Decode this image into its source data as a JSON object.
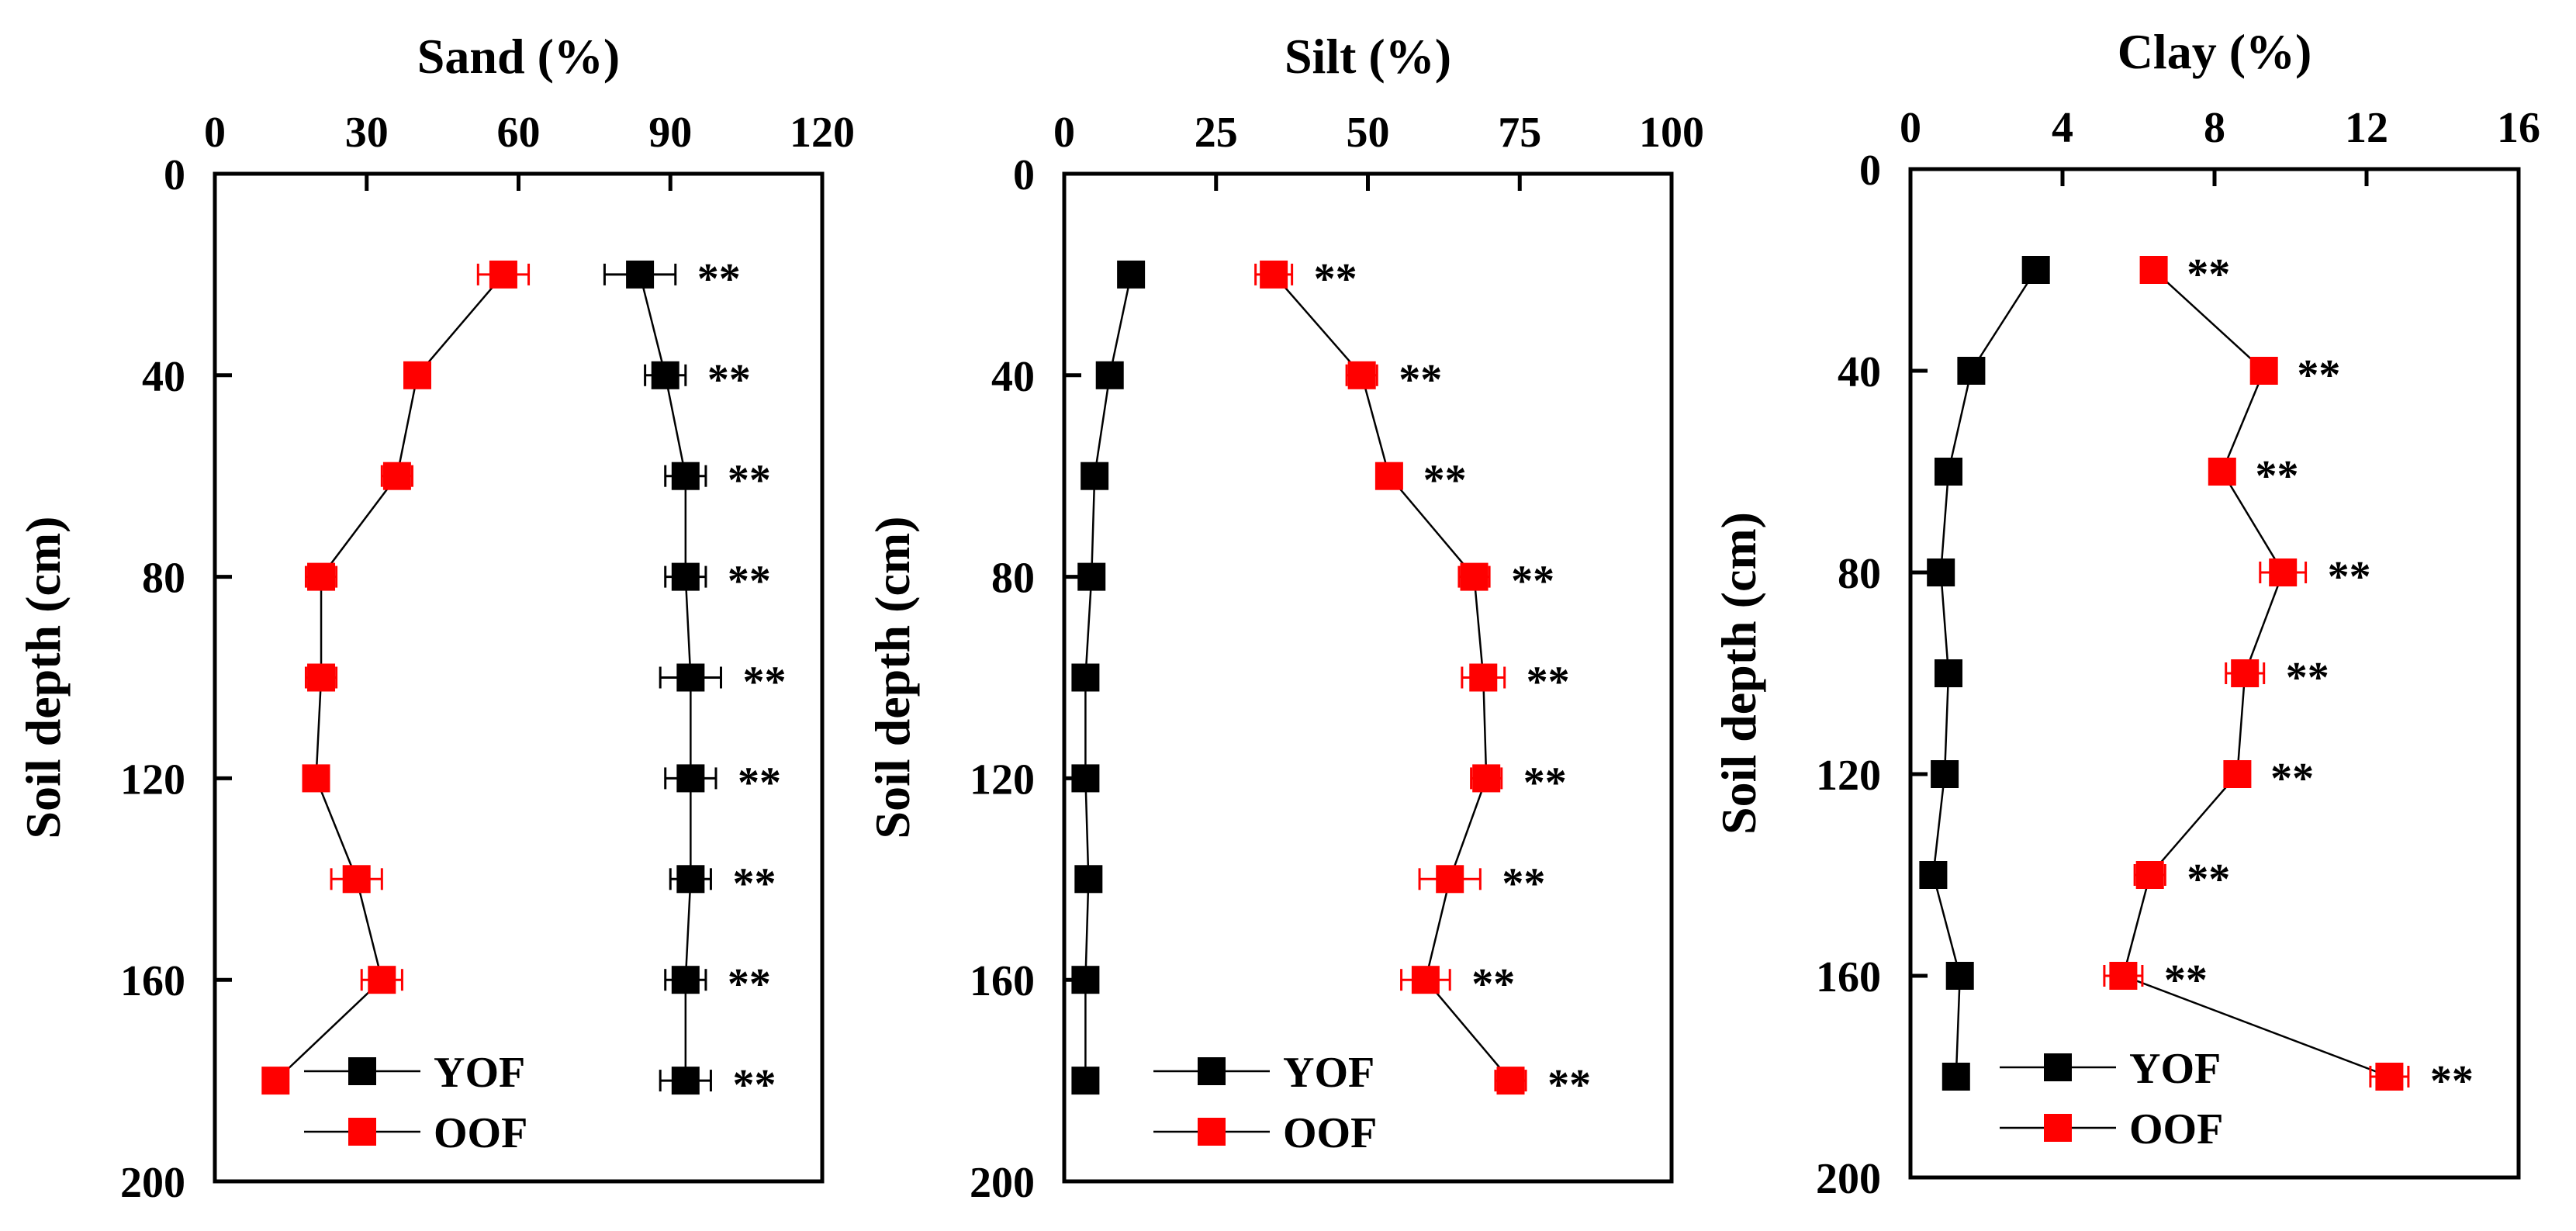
{
  "chart_data": [
    {
      "type": "scatter",
      "title": "Sand (%)",
      "xlabel": "Sand (%)",
      "ylabel": "Soil depth (cm)",
      "xlim": [
        0,
        120
      ],
      "xticks": [
        "0",
        "30",
        "60",
        "90",
        "120"
      ],
      "ylim": [
        0,
        200
      ],
      "yticks": [
        "0",
        "40",
        "80",
        "120",
        "160",
        "200"
      ],
      "depths": [
        20,
        40,
        60,
        80,
        100,
        120,
        140,
        160,
        180
      ],
      "series": [
        {
          "name": "YOF",
          "color": "#000000",
          "values": [
            84,
            89,
            93,
            93,
            94,
            94,
            94,
            93,
            93
          ],
          "errors": [
            7,
            4,
            4,
            4,
            6,
            5,
            4,
            4,
            5
          ]
        },
        {
          "name": "OOF",
          "color": "#ff0000",
          "values": [
            57,
            40,
            36,
            21,
            21,
            20,
            28,
            33,
            12
          ],
          "errors": [
            5,
            2,
            3,
            3,
            3,
            2,
            5,
            4,
            2
          ]
        }
      ],
      "significance": "**",
      "legend": "bottom"
    },
    {
      "type": "scatter",
      "title": "Silt (%)",
      "xlabel": "Silt (%)",
      "ylabel": "Soil depth (cm)",
      "xlim": [
        0,
        100
      ],
      "xticks": [
        "0",
        "25",
        "50",
        "75",
        "100"
      ],
      "ylim": [
        0,
        200
      ],
      "yticks": [
        "0",
        "40",
        "80",
        "120",
        "160",
        "200"
      ],
      "depths": [
        20,
        40,
        60,
        80,
        100,
        120,
        140,
        160,
        180
      ],
      "series": [
        {
          "name": "YOF",
          "color": "#000000",
          "values": [
            11,
            7.5,
            5,
            4.5,
            3.5,
            3.5,
            4,
            3.5,
            3.5
          ],
          "errors": [
            1.5,
            1.5,
            1.5,
            1.5,
            1.5,
            1.5,
            1.5,
            1.5,
            1.5
          ]
        },
        {
          "name": "OOF",
          "color": "#ff0000",
          "values": [
            34.5,
            49,
            53.5,
            67.5,
            69,
            69.5,
            63.5,
            59.5,
            73.5
          ],
          "errors": [
            3,
            2.5,
            2,
            2.5,
            3.5,
            2.5,
            5,
            4,
            2.5
          ]
        }
      ],
      "significance": "**",
      "legend": "bottom"
    },
    {
      "type": "scatter",
      "title": "Clay (%)",
      "xlabel": "Clay (%)",
      "ylabel": "Soil depth (cm)",
      "xlim": [
        0,
        16
      ],
      "xticks": [
        "0",
        "4",
        "8",
        "12",
        "16"
      ],
      "ylim": [
        0,
        200
      ],
      "yticks": [
        "0",
        "40",
        "80",
        "120",
        "160",
        "200"
      ],
      "depths": [
        20,
        40,
        60,
        80,
        100,
        120,
        140,
        160,
        180
      ],
      "series": [
        {
          "name": "YOF",
          "color": "#000000",
          "values": [
            3.3,
            1.6,
            1.0,
            0.8,
            1.0,
            0.9,
            0.6,
            1.3,
            1.2
          ],
          "errors": [
            0.2,
            0.2,
            0.2,
            0.2,
            0.2,
            0.2,
            0.2,
            0.2,
            0.2
          ]
        },
        {
          "name": "OOF",
          "color": "#ff0000",
          "values": [
            6.4,
            9.3,
            8.2,
            9.8,
            8.8,
            8.6,
            6.3,
            5.6,
            12.6
          ],
          "errors": [
            0.3,
            0.3,
            0.3,
            0.6,
            0.5,
            0.3,
            0.4,
            0.5,
            0.5
          ]
        }
      ],
      "significance": "**",
      "legend": "bottom"
    }
  ]
}
